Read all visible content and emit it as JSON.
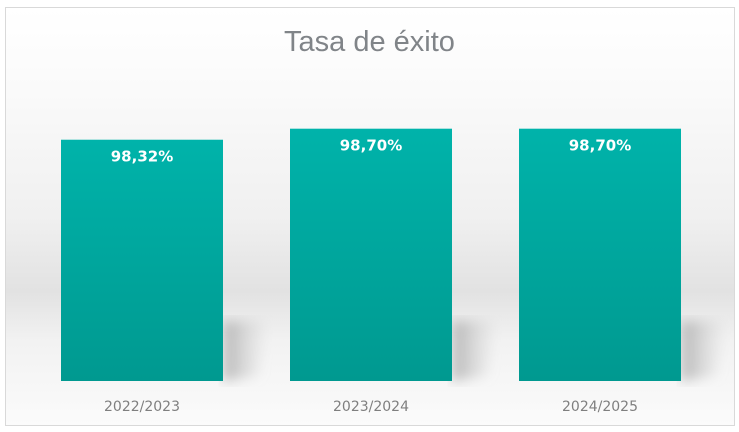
{
  "chart_data": {
    "type": "bar",
    "title": "Tasa de éxito",
    "categories": [
      "2022/2023",
      "2023/2024",
      "2024/2025"
    ],
    "values": [
      98.32,
      98.7,
      98.7
    ],
    "data_labels": [
      "98,32%",
      "98,70%",
      "98,70%"
    ],
    "xlabel": "",
    "ylabel": "",
    "ylim": [
      90,
      100
    ],
    "grid": false,
    "legend": "none",
    "colors": {
      "bar_top": "#00b3aa",
      "bar_bottom": "#009990",
      "text": "#7f7f7f"
    }
  }
}
